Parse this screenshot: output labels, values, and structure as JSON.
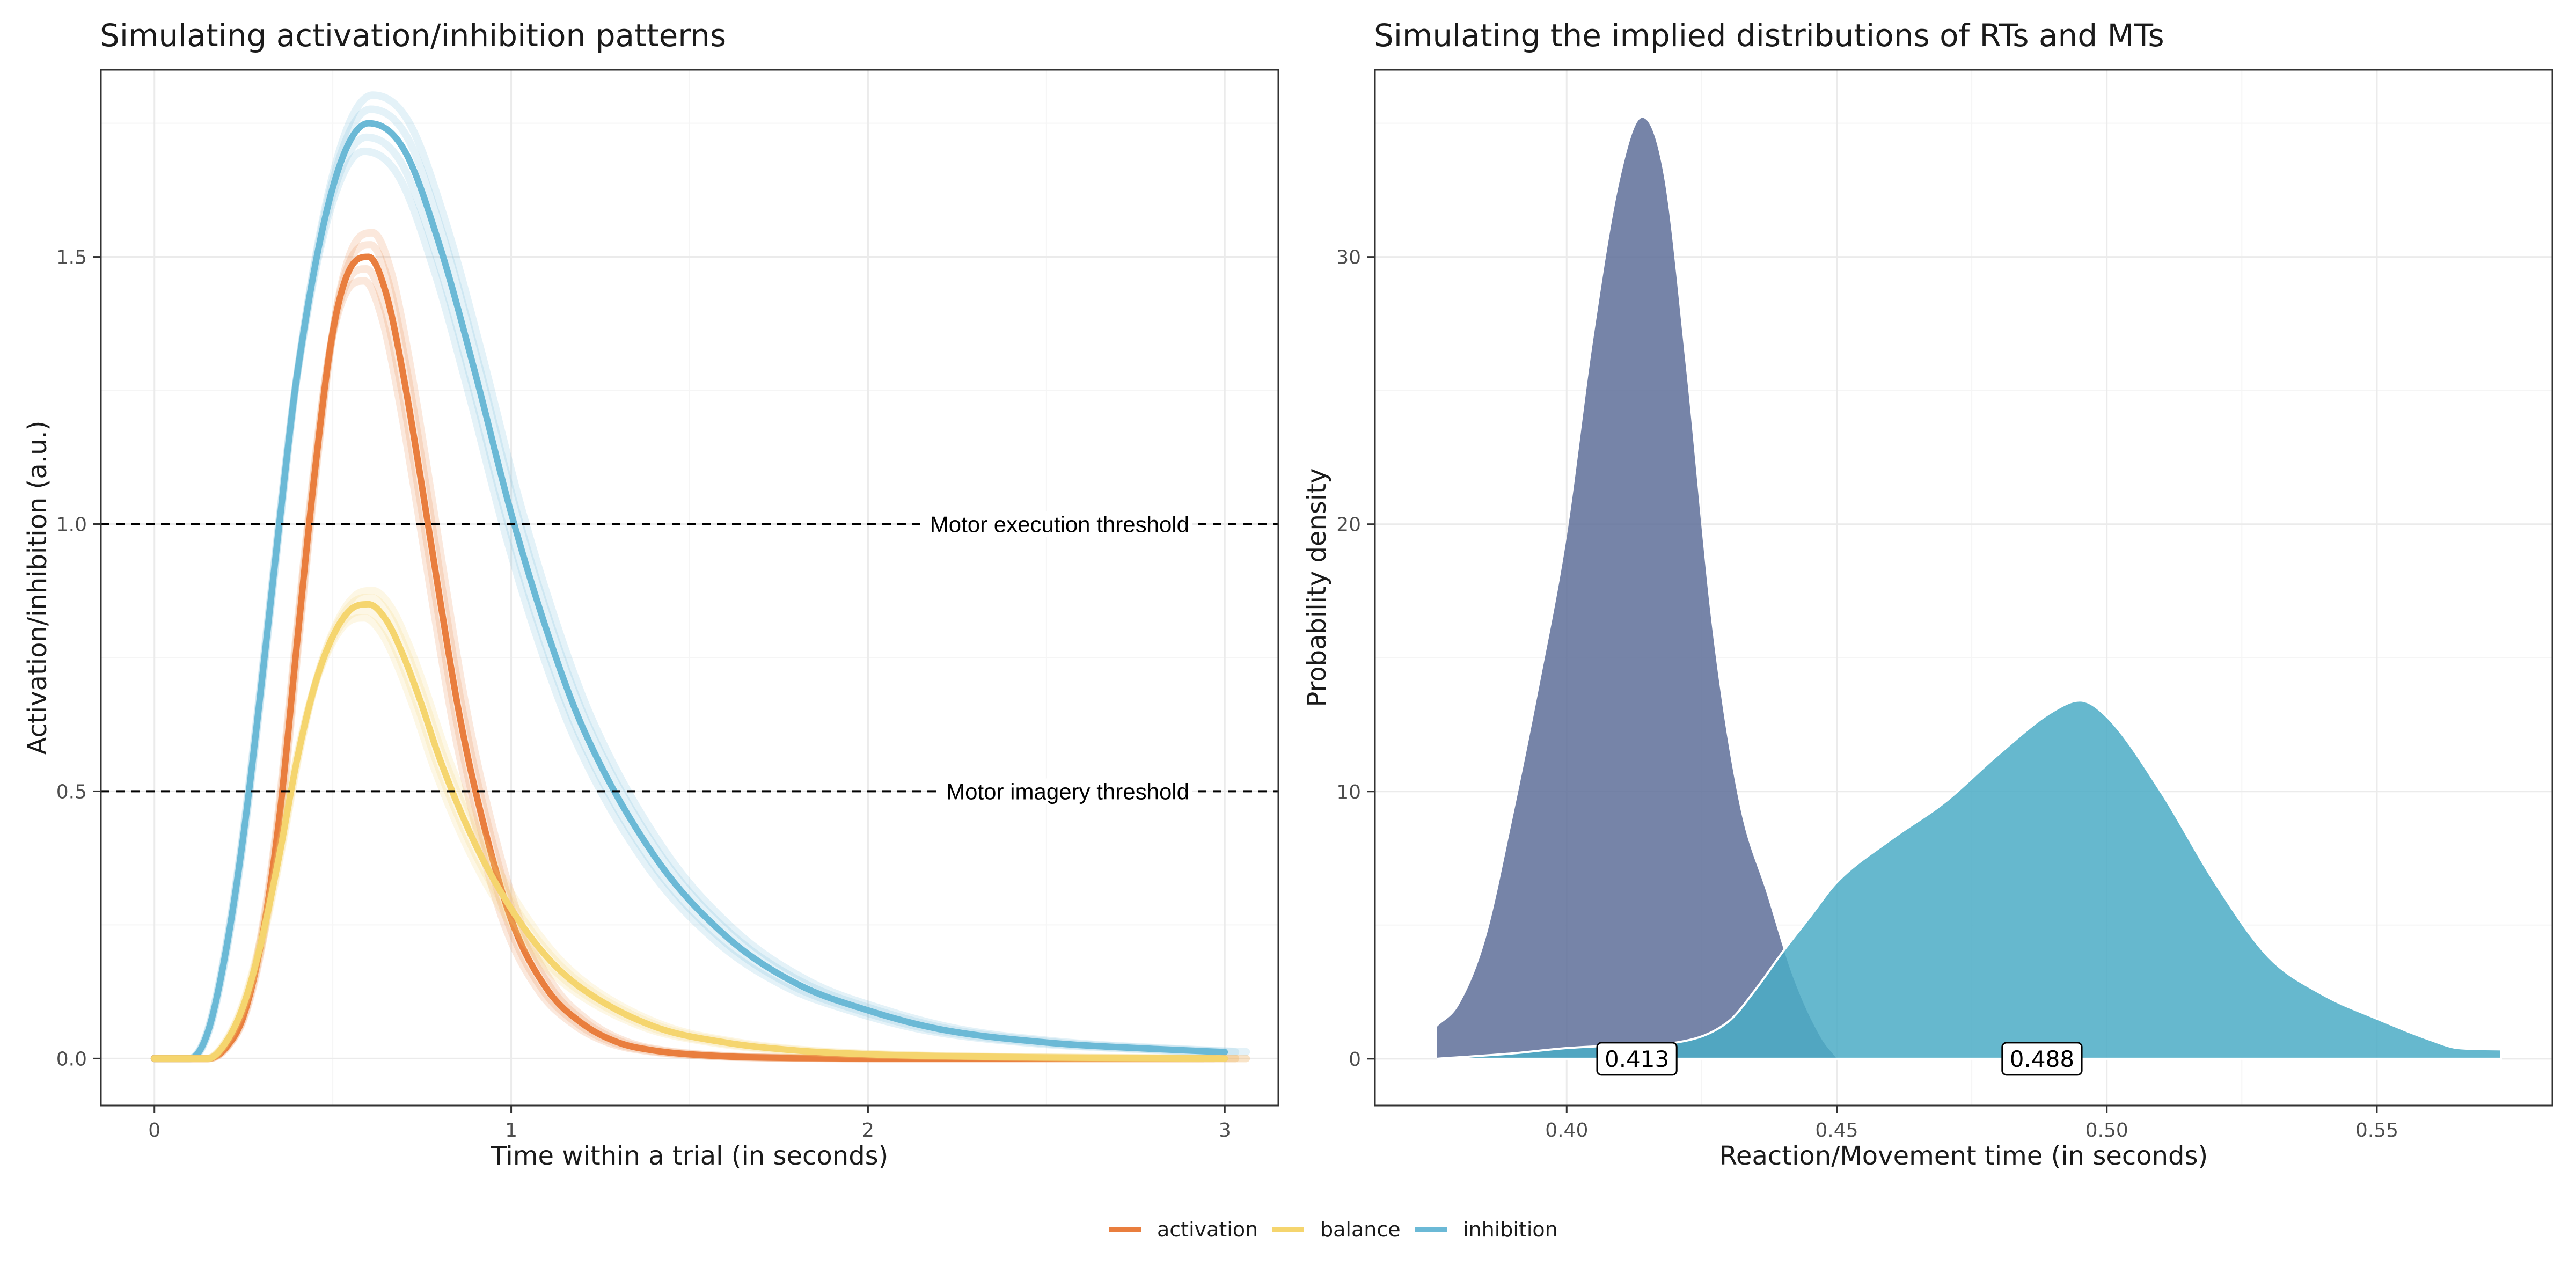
{
  "legend": {
    "items": [
      {
        "label": "activation",
        "color": "#E97E3E"
      },
      {
        "label": "balance",
        "color": "#F5D56E"
      },
      {
        "label": "inhibition",
        "color": "#6BB9D6"
      }
    ]
  },
  "chart_data": [
    {
      "type": "line",
      "title": "Simulating activation/inhibition patterns",
      "xlabel": "Time within a trial (in seconds)",
      "ylabel": "Activation/inhibition (a.u.)",
      "xlim": [
        -0.15,
        3.15
      ],
      "ylim": [
        -0.088,
        1.85
      ],
      "xticks": [
        0,
        1,
        2,
        3
      ],
      "xtick_labels": [
        "0",
        "1",
        "2",
        "3"
      ],
      "yticks": [
        0,
        0.5,
        1,
        1.5
      ],
      "ytick_labels": [
        "0.0",
        "0.5",
        "1.0",
        "1.5"
      ],
      "grid": true,
      "legend_position": "bottom",
      "thresholds": [
        {
          "y": 1.0,
          "label": "Motor execution threshold"
        },
        {
          "y": 0.5,
          "label": "Motor imagery threshold"
        }
      ],
      "series": [
        {
          "name": "inhibition",
          "color": "#6BB9D6",
          "x": [
            0,
            0.1,
            0.15,
            0.2,
            0.25,
            0.3,
            0.35,
            0.4,
            0.5,
            0.6,
            0.7,
            0.8,
            0.9,
            1.0,
            1.1,
            1.2,
            1.4,
            1.6,
            1.8,
            2.0,
            2.2,
            2.5,
            2.8,
            3.0
          ],
          "y": [
            0,
            0,
            0.05,
            0.2,
            0.42,
            0.7,
            1.0,
            1.28,
            1.63,
            1.75,
            1.7,
            1.52,
            1.28,
            1.02,
            0.8,
            0.62,
            0.38,
            0.23,
            0.14,
            0.09,
            0.055,
            0.03,
            0.018,
            0.012
          ]
        },
        {
          "name": "activation",
          "color": "#E97E3E",
          "x": [
            0,
            0.15,
            0.2,
            0.25,
            0.3,
            0.35,
            0.4,
            0.45,
            0.5,
            0.55,
            0.6,
            0.65,
            0.7,
            0.75,
            0.8,
            0.85,
            0.9,
            1.0,
            1.1,
            1.2,
            1.3,
            1.4,
            1.6,
            1.8,
            2.0,
            3.0
          ],
          "y": [
            0,
            0,
            0.02,
            0.08,
            0.22,
            0.45,
            0.78,
            1.1,
            1.36,
            1.48,
            1.5,
            1.43,
            1.27,
            1.07,
            0.86,
            0.66,
            0.5,
            0.26,
            0.13,
            0.065,
            0.03,
            0.015,
            0.004,
            0.001,
            0,
            0
          ]
        },
        {
          "name": "balance",
          "color": "#F5D56E",
          "x": [
            0,
            0.15,
            0.2,
            0.25,
            0.3,
            0.35,
            0.4,
            0.45,
            0.5,
            0.55,
            0.6,
            0.65,
            0.7,
            0.75,
            0.8,
            0.9,
            1.0,
            1.1,
            1.2,
            1.4,
            1.6,
            1.8,
            2.0,
            2.5,
            3.0
          ],
          "y": [
            0,
            0,
            0.03,
            0.1,
            0.22,
            0.38,
            0.56,
            0.7,
            0.79,
            0.84,
            0.85,
            0.82,
            0.75,
            0.66,
            0.56,
            0.4,
            0.28,
            0.19,
            0.13,
            0.06,
            0.03,
            0.015,
            0.008,
            0.002,
            0
          ]
        }
      ]
    },
    {
      "type": "area",
      "title": "Simulating the implied distributions of RTs and MTs",
      "xlabel": "Reaction/Movement time (in seconds)",
      "ylabel": "Probability density",
      "xlim": [
        0.3645,
        0.5825
      ],
      "ylim": [
        -1.75,
        37
      ],
      "xticks": [
        0.4,
        0.45,
        0.5,
        0.55
      ],
      "xtick_labels": [
        "0.40",
        "0.45",
        "0.50",
        "0.55"
      ],
      "yticks": [
        0,
        10,
        20,
        30
      ],
      "ytick_labels": [
        "0",
        "10",
        "20",
        "30"
      ],
      "grid": true,
      "series": [
        {
          "name": "RT",
          "color": "#5E6F99",
          "mean_label": "0.413",
          "mean_x": 0.413,
          "x": [
            0.376,
            0.38,
            0.385,
            0.39,
            0.395,
            0.4,
            0.405,
            0.41,
            0.414,
            0.418,
            0.422,
            0.427,
            0.432,
            0.437,
            0.442,
            0.447,
            0.45
          ],
          "y": [
            1.2,
            2.0,
            4.5,
            9.0,
            14.0,
            19.5,
            27.0,
            33.0,
            35.2,
            33.0,
            26.0,
            16.0,
            9.5,
            6.2,
            3.0,
            0.8,
            0
          ]
        },
        {
          "name": "MT",
          "color": "#4BACC6",
          "mean_label": "0.488",
          "mean_x": 0.488,
          "x": [
            0.376,
            0.39,
            0.4,
            0.41,
            0.42,
            0.43,
            0.435,
            0.44,
            0.445,
            0.45,
            0.46,
            0.47,
            0.48,
            0.49,
            0.495,
            0.5,
            0.51,
            0.52,
            0.53,
            0.54,
            0.55,
            0.56,
            0.565,
            0.573
          ],
          "y": [
            0,
            0.2,
            0.4,
            0.5,
            0.6,
            1.4,
            2.6,
            4.0,
            5.3,
            6.6,
            8.2,
            9.6,
            11.4,
            13.0,
            13.4,
            12.8,
            10.0,
            6.6,
            3.8,
            2.4,
            1.5,
            0.7,
            0.4,
            0.35
          ]
        }
      ]
    }
  ]
}
